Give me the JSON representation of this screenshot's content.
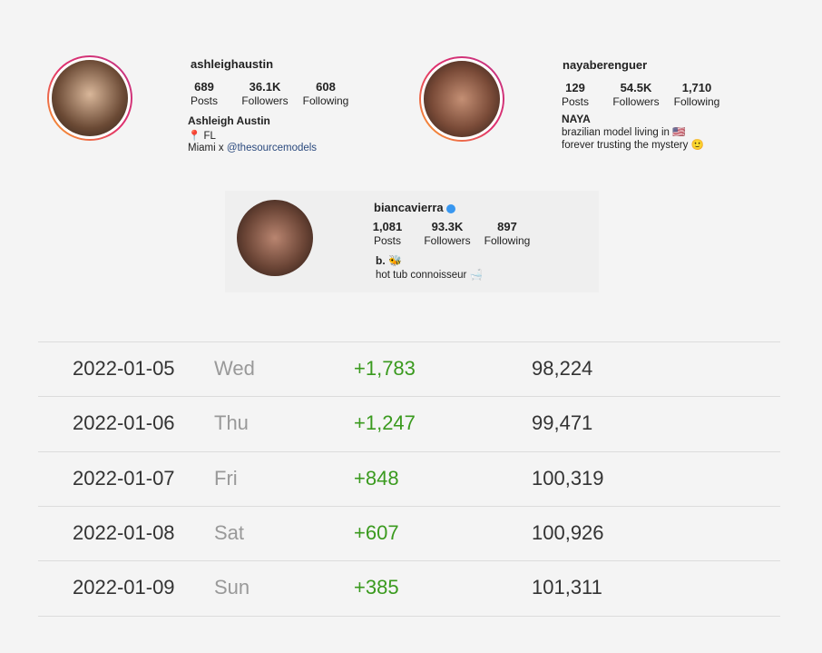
{
  "profiles": [
    {
      "username": "ashleighaustin",
      "stats": [
        {
          "value": "689",
          "label": "Posts"
        },
        {
          "value": "36.1K",
          "label": "Followers"
        },
        {
          "value": "608",
          "label": "Following"
        }
      ],
      "name": "Ashleigh Austin",
      "bio": [
        "📍 FL",
        "Miami x "
      ],
      "link": "@thesourcemodels"
    },
    {
      "username": "nayaberenguer",
      "stats": [
        {
          "value": "129",
          "label": "Posts"
        },
        {
          "value": "54.5K",
          "label": "Followers"
        },
        {
          "value": "1,710",
          "label": "Following"
        }
      ],
      "name": "NAYA",
      "bio": [
        "brazilian model living in 🇺🇸",
        "forever trusting the mystery 🙂"
      ]
    },
    {
      "username": "biancavierra",
      "stats": [
        {
          "value": "1,081",
          "label": "Posts"
        },
        {
          "value": "93.3K",
          "label": "Followers"
        },
        {
          "value": "897",
          "label": "Following"
        }
      ],
      "name": "b. 🐝",
      "bio": [
        "hot tub connoisseur 🛁"
      ]
    }
  ],
  "table": {
    "rows": [
      [
        "2022-01-05",
        "Wed",
        "+1,783",
        "98,224"
      ],
      [
        "2022-01-06",
        "Thu",
        "+1,247",
        "99,471"
      ],
      [
        "2022-01-07",
        "Fri",
        "+848",
        "100,319"
      ],
      [
        "2022-01-08",
        "Sat",
        "+607",
        "100,926"
      ],
      [
        "2022-01-09",
        "Sun",
        "+385",
        "101,311"
      ]
    ]
  }
}
